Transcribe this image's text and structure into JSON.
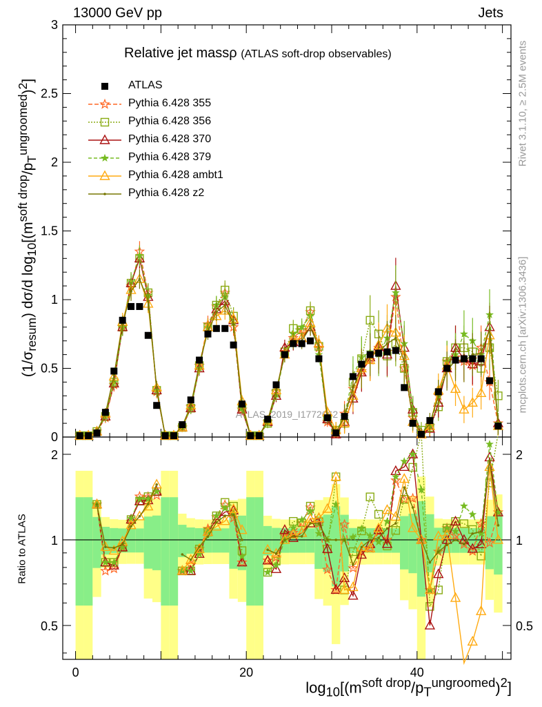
{
  "header": {
    "left": "13000 GeV pp",
    "right": "Jets"
  },
  "title": {
    "main": "Relative jet massρ",
    "sub": "(ATLAS soft-drop observables)"
  },
  "axis": {
    "ylabel": "(1/σresum) dσ/d log10[(msoft drop/pTungroomed)2]",
    "ratio_ylabel": "Ratio to ATLAS",
    "xlabel": "log10[(msoft drop/pTungroomed)2]",
    "x_ticks": [
      "0",
      "20",
      "40"
    ],
    "y_ticks": [
      "0",
      "0.5",
      "1",
      "1.5",
      "2",
      "2.5",
      "3"
    ],
    "ratio_ticks": [
      "0.5",
      "1",
      "2"
    ]
  },
  "side": {
    "rivet": "Rivet 3.1.10, ≥ 2.5M events",
    "mcplots": "mcplots.cern.ch [arXiv:1306.3436]"
  },
  "watermark": "ATLAS_2019_I1772062",
  "chart_data": {
    "type": "line",
    "xlim": [
      -1.5,
      51
    ],
    "ylim": [
      0,
      3
    ],
    "ratio_ylim": [
      0.38,
      2.3
    ],
    "x": [
      0.5,
      1.5,
      2.5,
      3.5,
      4.5,
      5.5,
      6.5,
      7.5,
      8.5,
      9.5,
      10.5,
      11.5,
      12.5,
      13.5,
      14.5,
      15.5,
      16.5,
      17.5,
      18.5,
      19.5,
      20.5,
      21.5,
      22.5,
      23.5,
      24.5,
      25.5,
      26.5,
      27.5,
      28.5,
      29.5,
      30.5,
      31.5,
      32.5,
      33.5,
      34.5,
      35.5,
      36.5,
      37.5,
      38.5,
      39.5,
      40.5,
      41.5,
      42.5,
      43.5,
      44.5,
      45.5,
      46.5,
      47.5,
      48.5,
      49.5
    ],
    "data": {
      "name": "ATLAS",
      "values": [
        0.01,
        0.01,
        0.03,
        0.18,
        0.48,
        0.85,
        0.95,
        0.95,
        0.74,
        0.23,
        0.01,
        0.01,
        0.09,
        0.27,
        0.56,
        0.75,
        0.79,
        0.79,
        0.67,
        0.24,
        0.01,
        0.01,
        0.13,
        0.38,
        0.6,
        0.68,
        0.68,
        0.7,
        0.57,
        0.14,
        0.03,
        0.15,
        0.44,
        0.53,
        0.6,
        0.61,
        0.62,
        0.63,
        0.36,
        0.1,
        0.02,
        0.12,
        0.33,
        0.5,
        0.56,
        0.57,
        0.57,
        0.57,
        0.41,
        0.08
      ]
    },
    "series": [
      {
        "name": "Pythia 6.428 355",
        "color": "#ff6622",
        "marker": "star-open",
        "dash": "6,3",
        "values": [
          0.01,
          0.01,
          0.04,
          0.14,
          0.38,
          0.8,
          1.1,
          1.35,
          1.05,
          0.33,
          0.01,
          0.01,
          0.07,
          0.22,
          0.52,
          0.82,
          0.95,
          1.05,
          0.8,
          0.2,
          0.01,
          0.01,
          0.11,
          0.33,
          0.62,
          0.72,
          0.78,
          0.91,
          0.65,
          0.11,
          0.02,
          0.17,
          0.35,
          0.48,
          0.56,
          0.65,
          0.62,
          1.02,
          0.5,
          0.14,
          0.02,
          0.08,
          0.3,
          0.55,
          0.58,
          0.55,
          0.52,
          0.65,
          0.4,
          0.1
        ]
      },
      {
        "name": "Pythia 6.428 356",
        "color": "#88aa11",
        "marker": "square-open",
        "dash": "2,2",
        "values": [
          0.01,
          0.01,
          0.04,
          0.15,
          0.4,
          0.8,
          1.12,
          1.3,
          1.05,
          0.34,
          0.01,
          0.01,
          0.07,
          0.21,
          0.52,
          0.8,
          0.96,
          1.07,
          0.88,
          0.22,
          0.01,
          0.01,
          0.1,
          0.32,
          0.62,
          0.79,
          0.78,
          0.92,
          0.66,
          0.13,
          0.05,
          0.1,
          0.4,
          0.57,
          0.85,
          0.75,
          0.59,
          0.68,
          0.5,
          0.18,
          0.05,
          0.07,
          0.22,
          0.55,
          0.65,
          0.65,
          0.62,
          0.5,
          0.65,
          0.3
        ]
      },
      {
        "name": "Pythia 6.428 370",
        "color": "#aa1111",
        "marker": "triangle-open",
        "dash": "",
        "values": [
          0.01,
          0.01,
          0.04,
          0.15,
          0.39,
          0.8,
          1.12,
          1.3,
          1.02,
          0.34,
          0.01,
          0.01,
          0.07,
          0.21,
          0.5,
          0.8,
          0.93,
          0.99,
          0.85,
          0.2,
          0.01,
          0.01,
          0.11,
          0.3,
          0.65,
          0.69,
          0.72,
          0.8,
          0.68,
          0.13,
          0.02,
          0.11,
          0.28,
          0.47,
          0.58,
          0.66,
          0.6,
          1.1,
          0.65,
          0.2,
          0.02,
          0.06,
          0.25,
          0.5,
          0.65,
          0.57,
          0.53,
          0.55,
          0.8,
          0.1
        ]
      },
      {
        "name": "Pythia 6.428 379",
        "color": "#77bb22",
        "marker": "star-small",
        "dash": "5,3",
        "values": [
          0.01,
          0.01,
          0.04,
          0.15,
          0.4,
          0.8,
          1.13,
          1.32,
          1.03,
          0.34,
          0.01,
          0.01,
          0.07,
          0.21,
          0.5,
          0.8,
          0.96,
          1.02,
          0.83,
          0.21,
          0.01,
          0.01,
          0.1,
          0.31,
          0.6,
          0.75,
          0.8,
          0.88,
          0.6,
          0.14,
          0.04,
          0.15,
          0.45,
          0.58,
          0.62,
          0.6,
          0.72,
          1.05,
          0.68,
          0.2,
          0.03,
          0.08,
          0.3,
          0.55,
          0.6,
          0.75,
          0.7,
          0.6,
          0.89,
          0.1
        ]
      },
      {
        "name": "Pythia 6.428 ambt1",
        "color": "#ffaa11",
        "marker": "triangle-open",
        "dash": "",
        "values": [
          0.01,
          0.01,
          0.04,
          0.17,
          0.44,
          0.84,
          1.07,
          1.15,
          0.97,
          0.36,
          0.01,
          0.01,
          0.07,
          0.23,
          0.52,
          0.8,
          0.88,
          0.92,
          0.86,
          0.26,
          0.01,
          0.01,
          0.12,
          0.34,
          0.6,
          0.71,
          0.72,
          0.83,
          0.68,
          0.18,
          0.05,
          0.1,
          0.3,
          0.5,
          0.56,
          0.67,
          0.79,
          0.76,
          0.59,
          0.11,
          0.02,
          0.08,
          0.34,
          0.52,
          0.35,
          0.2,
          0.25,
          0.32,
          0.74,
          0.08
        ]
      },
      {
        "name": "Pythia 6.428 z2",
        "color": "#777700",
        "marker": "dot",
        "dash": "",
        "values": [
          0.01,
          0.01,
          0.04,
          0.17,
          0.45,
          0.82,
          1.06,
          1.15,
          0.99,
          0.36,
          0.01,
          0.01,
          0.08,
          0.23,
          0.53,
          0.77,
          0.91,
          0.96,
          0.82,
          0.24,
          0.01,
          0.01,
          0.12,
          0.34,
          0.6,
          0.7,
          0.7,
          0.8,
          0.65,
          0.14,
          0.03,
          0.15,
          0.36,
          0.5,
          0.6,
          0.62,
          0.68,
          0.72,
          0.55,
          0.13,
          0.02,
          0.1,
          0.3,
          0.48,
          0.56,
          0.55,
          0.6,
          0.61,
          0.78,
          0.09
        ]
      }
    ],
    "bands": [
      {
        "name": "inner",
        "color": "#88ee88"
      },
      {
        "name": "outer",
        "color": "#ffff88"
      }
    ]
  }
}
